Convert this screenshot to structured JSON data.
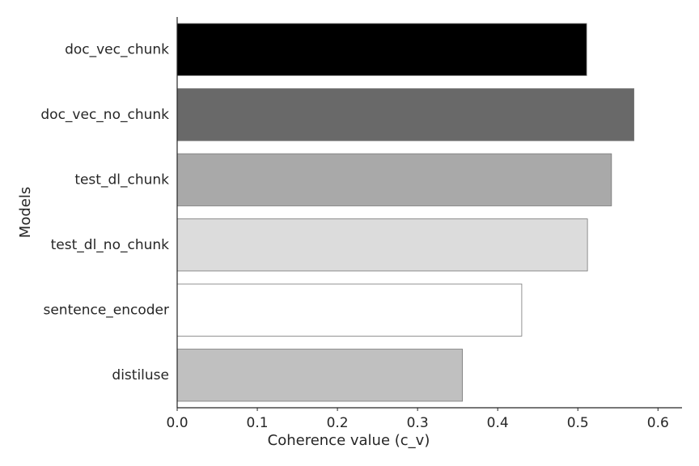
{
  "chart_data": {
    "type": "bar",
    "orientation": "horizontal",
    "xlabel": "Coherence value (c_v)",
    "ylabel": "Models",
    "xlim": [
      0,
      0.63
    ],
    "xticks": [
      0.0,
      0.1,
      0.2,
      0.3,
      0.4,
      0.5,
      0.6
    ],
    "xtick_labels": [
      "0.0",
      "0.1",
      "0.2",
      "0.3",
      "0.4",
      "0.5",
      "0.6"
    ],
    "grid": false,
    "categories": [
      "doc_vec_chunk",
      "doc_vec_no_chunk",
      "test_dl_chunk",
      "test_dl_no_chunk",
      "sentence_encoder",
      "distiluse"
    ],
    "values": [
      0.511,
      0.57,
      0.542,
      0.512,
      0.43,
      0.356
    ],
    "colors": [
      "#000000",
      "#696969",
      "#a9a9a9",
      "#dcdcdc",
      "#ffffff",
      "#c0c0c0"
    ],
    "edge_color": "#777777"
  }
}
